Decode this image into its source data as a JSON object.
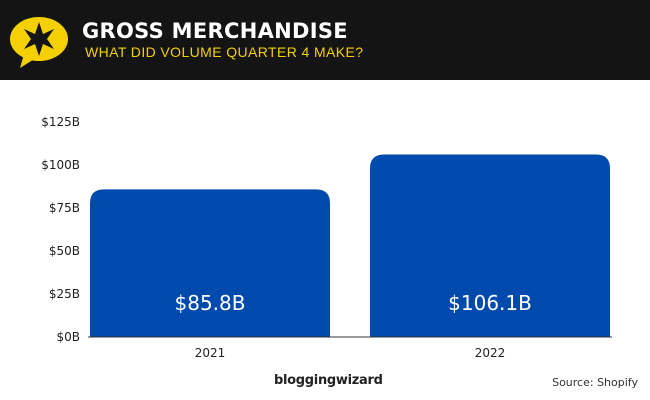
{
  "header": {
    "title": "GROSS MERCHANDISE",
    "subtitle": "WHAT DID VOLUME QUARTER 4 MAKE?"
  },
  "footer": {
    "brand": "bloggingwizard",
    "source": "Source: Shopify"
  },
  "colors": {
    "bar": "#004aad",
    "header_bg": "#141414",
    "accent": "#f5d000"
  },
  "chart_data": {
    "type": "bar",
    "categories": [
      "2021",
      "2022"
    ],
    "values": [
      85.8,
      106.1
    ],
    "data_labels": [
      "$85.8B",
      "$106.1B"
    ],
    "yticks": [
      0,
      25,
      50,
      75,
      100,
      125
    ],
    "ytick_labels": [
      "$0B",
      "$25B",
      "$50B",
      "$75B",
      "$100B",
      "$125B"
    ],
    "ylim": [
      0,
      125
    ],
    "grid": false
  }
}
